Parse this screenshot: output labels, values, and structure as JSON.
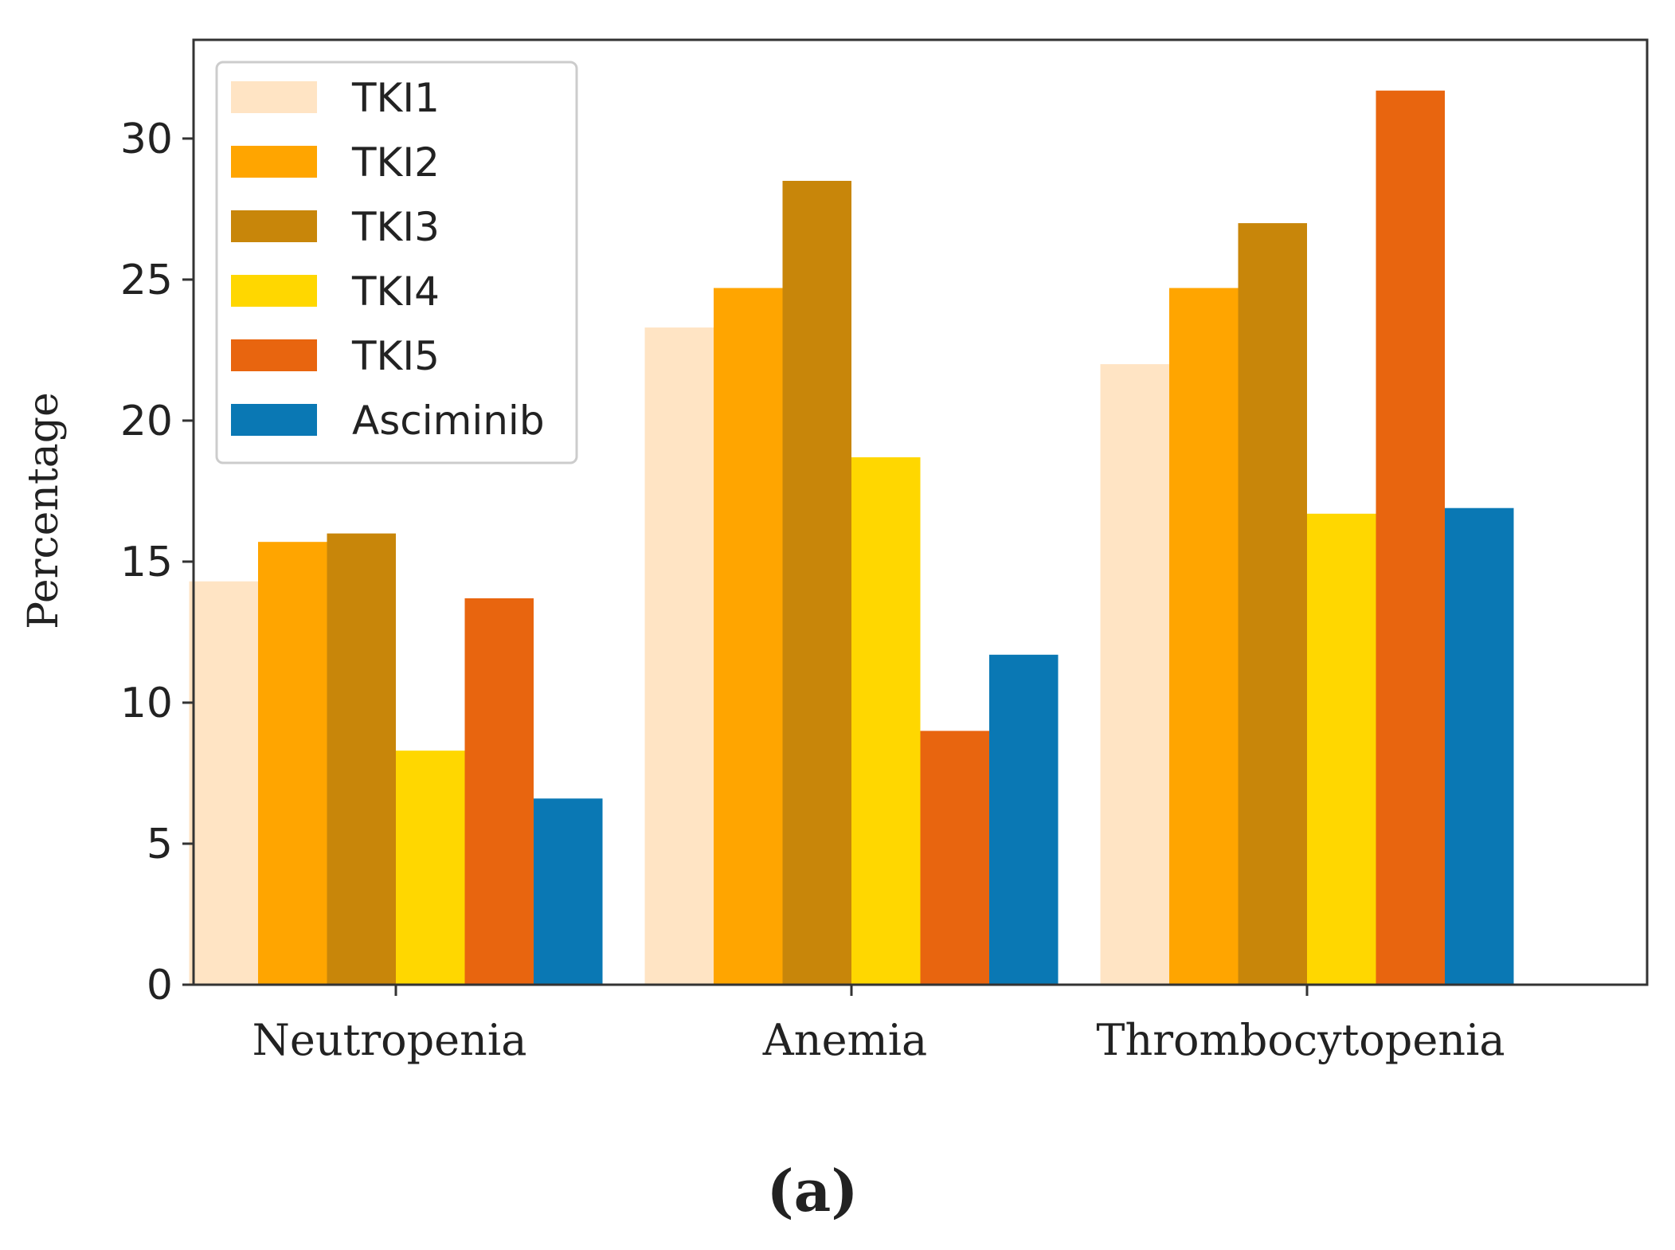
{
  "chart_data": {
    "type": "bar",
    "categories": [
      "Neutropenia",
      "Anemia",
      "Thrombocytopenia"
    ],
    "series": [
      {
        "name": "TKI1",
        "color": "#FFE4C4",
        "values": [
          14.3,
          23.3,
          22.0
        ]
      },
      {
        "name": "TKI2",
        "color": "#FFA500",
        "values": [
          15.7,
          24.7,
          24.7
        ]
      },
      {
        "name": "TKI3",
        "color": "#C8860A",
        "values": [
          16.0,
          28.5,
          27.0
        ]
      },
      {
        "name": "TKI4",
        "color": "#FFD700",
        "values": [
          8.3,
          18.7,
          16.7
        ]
      },
      {
        "name": "TKI5",
        "color": "#E8650F",
        "values": [
          13.7,
          9.0,
          31.7
        ]
      },
      {
        "name": "Asciminib",
        "color": "#0A78B4",
        "values": [
          6.6,
          11.7,
          16.9
        ]
      }
    ],
    "title": "",
    "xlabel": "",
    "ylabel": "Percentage",
    "ylim": [
      0,
      33.5
    ],
    "yticks": [
      0,
      5,
      10,
      15,
      20,
      25,
      30
    ],
    "legend_position": "top-left",
    "grid": false,
    "panel_label": "(a)"
  }
}
